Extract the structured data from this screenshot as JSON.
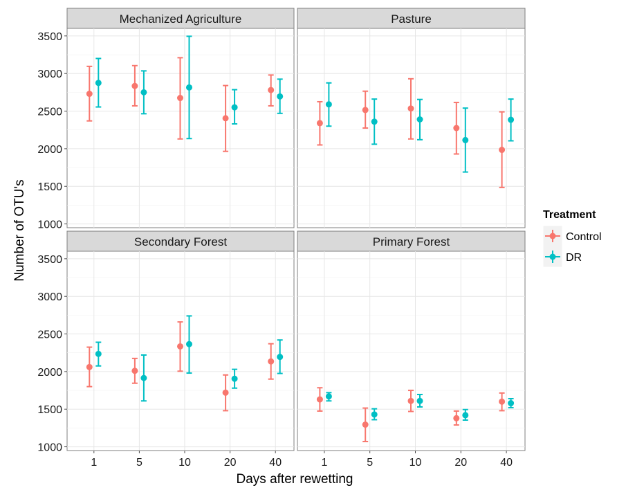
{
  "chart_data": {
    "type": "scatter",
    "subtype": "point-with-error-bars, faceted 2x2",
    "xlabel": "Days after rewetting",
    "ylabel": "Number of OTU's",
    "categories": [
      "1",
      "5",
      "10",
      "20",
      "40"
    ],
    "ylim": [
      950,
      3600
    ],
    "yticks": [
      1000,
      1500,
      2000,
      2500,
      3000,
      3500
    ],
    "grid": true,
    "legend": {
      "title": "Treatment",
      "placement": "right",
      "entries": [
        "Control",
        "DR"
      ]
    },
    "colors": {
      "Control": "#F8766D",
      "DR": "#00BFC4"
    },
    "panels": [
      {
        "title": "Mechanized Agriculture",
        "series": [
          {
            "name": "Control",
            "values": [
              2730,
              2835,
              2675,
              2405,
              2780
            ],
            "lower": [
              2370,
              2570,
              2130,
              1965,
              2570
            ],
            "upper": [
              3095,
              3105,
              3210,
              2840,
              2980
            ]
          },
          {
            "name": "DR",
            "values": [
              2875,
              2750,
              2815,
              2550,
              2695
            ],
            "lower": [
              2555,
              2465,
              2135,
              2330,
              2470
            ],
            "upper": [
              3200,
              3035,
              3495,
              2785,
              2925
            ]
          }
        ]
      },
      {
        "title": "Pasture",
        "series": [
          {
            "name": "Control",
            "values": [
              2340,
              2515,
              2535,
              2275,
              1985
            ],
            "lower": [
              2050,
              2275,
              2130,
              1930,
              1485
            ],
            "upper": [
              2625,
              2765,
              2930,
              2615,
              2490
            ]
          },
          {
            "name": "DR",
            "values": [
              2590,
              2360,
              2390,
              2115,
              2385
            ],
            "lower": [
              2300,
              2060,
              2120,
              1690,
              2105
            ],
            "upper": [
              2875,
              2660,
              2655,
              2540,
              2660
            ]
          }
        ]
      },
      {
        "title": "Secondary Forest",
        "series": [
          {
            "name": "Control",
            "values": [
              2060,
              2010,
              2335,
              1720,
              2135
            ],
            "lower": [
              1800,
              1845,
              2005,
              1480,
              1900
            ],
            "upper": [
              2325,
              2175,
              2660,
              1955,
              2370
            ]
          },
          {
            "name": "DR",
            "values": [
              2235,
              1915,
              2365,
              1905,
              2195
            ],
            "lower": [
              2075,
              1610,
              1980,
              1780,
              1975
            ],
            "upper": [
              2390,
              2220,
              2740,
              2030,
              2420
            ]
          }
        ]
      },
      {
        "title": "Primary Forest",
        "series": [
          {
            "name": "Control",
            "values": [
              1630,
              1295,
              1610,
              1380,
              1600
            ],
            "lower": [
              1475,
              1070,
              1470,
              1290,
              1480
            ],
            "upper": [
              1785,
              1515,
              1750,
              1475,
              1715
            ]
          },
          {
            "name": "DR",
            "values": [
              1670,
              1430,
              1610,
              1420,
              1580
            ],
            "lower": [
              1610,
              1360,
              1530,
              1355,
              1520
            ],
            "upper": [
              1720,
              1505,
              1695,
              1495,
              1640
            ]
          }
        ]
      }
    ]
  }
}
